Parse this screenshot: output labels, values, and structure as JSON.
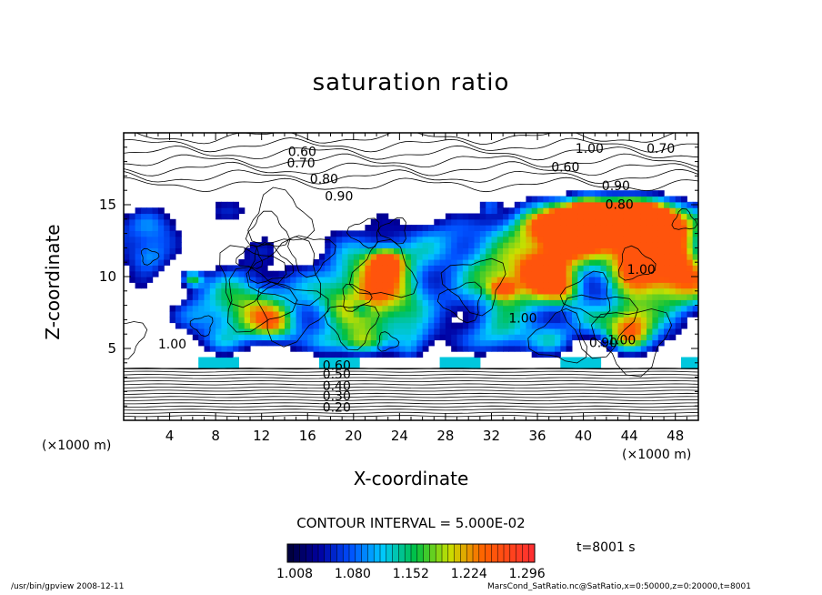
{
  "chart_data": {
    "type": "heatmap",
    "title": "saturation ratio",
    "xlabel": "X-coordinate",
    "ylabel": "Z-coordinate",
    "x_unit_label": "(×1000 m)",
    "y_unit_label": "(×1000 m)",
    "xlim": [
      0,
      50
    ],
    "ylim": [
      0,
      20
    ],
    "x_ticks": [
      4,
      8,
      12,
      16,
      20,
      24,
      28,
      32,
      36,
      40,
      44,
      48
    ],
    "y_ticks": [
      5,
      10,
      15
    ],
    "contour_interval_text": "CONTOUR INTERVAL = 5.000E-02",
    "time_text": "t=8001 s",
    "colorbar_ticks": [
      "1.008",
      "1.080",
      "1.152",
      "1.224",
      "1.296"
    ],
    "colorbar_range": [
      1.008,
      1.296
    ],
    "contour_labels": [
      "0.60",
      "0.70",
      "0.80",
      "0.90",
      "1.00",
      "0.70",
      "0.60",
      "0.90",
      "0.80",
      "1.00",
      "1.00",
      "1.00",
      "1.00",
      "0.90",
      "0.60",
      "0.50",
      "0.40",
      "0.30",
      "0.20"
    ],
    "colors": {
      "low": "#000050",
      "mid": "#00c0ff",
      "high": "#ff2020"
    }
  },
  "footer": {
    "left": "/usr/bin/gpview  2008-12-11",
    "right": "MarsCond_SatRatio.nc@SatRatio,x=0:50000,z=0:20000,t=8001"
  }
}
